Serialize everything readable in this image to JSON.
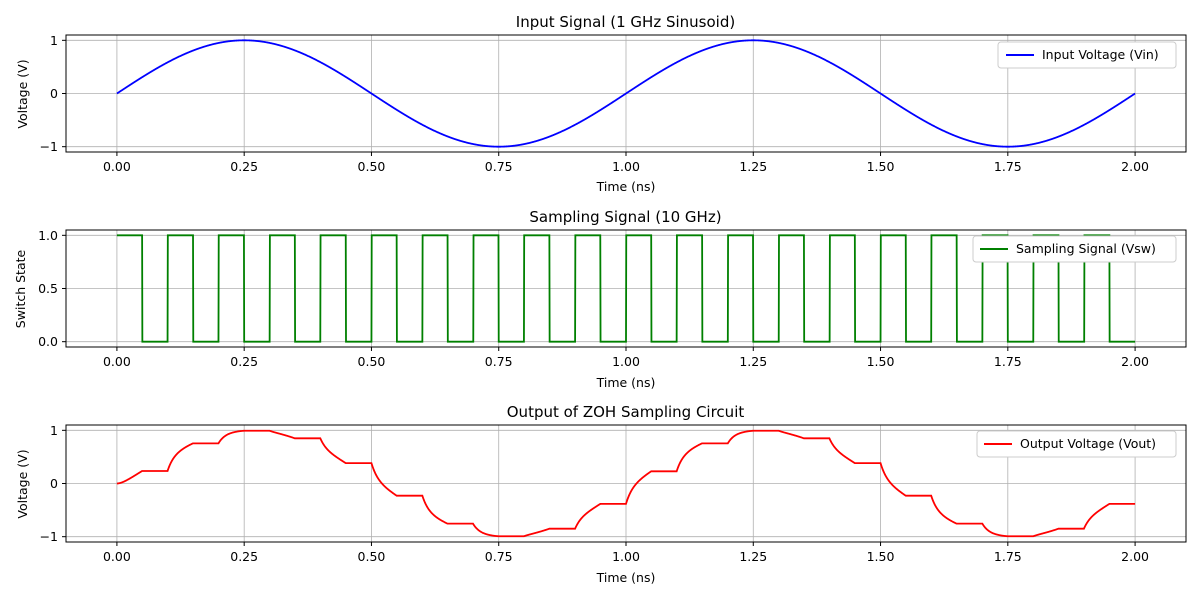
{
  "chart_data": [
    {
      "type": "line",
      "title": "Input Signal (1 GHz Sinusoid)",
      "xlabel": "Time (ns)",
      "ylabel": "Voltage (V)",
      "xlim": [
        -0.1,
        2.1
      ],
      "ylim": [
        -1.1,
        1.1
      ],
      "xticks": [
        "0.00",
        "0.25",
        "0.50",
        "0.75",
        "1.00",
        "1.25",
        "1.50",
        "1.75",
        "2.00"
      ],
      "yticks": [
        "−1",
        "0",
        "1"
      ],
      "ytick_values": [
        -1,
        0,
        1
      ],
      "grid": true,
      "legend": "upper-right",
      "series": [
        {
          "name": "Input Voltage (Vin)",
          "color": "#0000ff",
          "function": "sin(2*pi*1*t)",
          "t_range": [
            0,
            2
          ],
          "x": [
            0,
            0.25,
            0.5,
            0.75,
            1.0,
            1.25,
            1.5,
            1.75,
            2.0
          ],
          "values": [
            0,
            1,
            0,
            -1,
            0,
            1,
            0,
            -1,
            0
          ]
        }
      ]
    },
    {
      "type": "line",
      "title": "Sampling Signal (10 GHz)",
      "xlabel": "Time (ns)",
      "ylabel": "Switch State",
      "xlim": [
        -0.1,
        2.1
      ],
      "ylim": [
        -0.05,
        1.05
      ],
      "xticks": [
        "0.00",
        "0.25",
        "0.50",
        "0.75",
        "1.00",
        "1.25",
        "1.50",
        "1.75",
        "2.00"
      ],
      "yticks": [
        "0.0",
        "0.5",
        "1.0"
      ],
      "ytick_values": [
        0,
        0.5,
        1
      ],
      "grid": true,
      "legend": "upper-right",
      "series": [
        {
          "name": "Sampling Signal (Vsw)",
          "color": "#008000",
          "period_ns": 0.1,
          "duty": 0.5,
          "description_values": "1 for first half of each 0.1 ns period, 0 otherwise",
          "t_range": [
            0,
            2
          ]
        }
      ]
    },
    {
      "type": "line",
      "title": "Output of ZOH Sampling Circuit",
      "xlabel": "Time (ns)",
      "ylabel": "Voltage (V)",
      "xlim": [
        -0.1,
        2.1
      ],
      "ylim": [
        -1.1,
        1.1
      ],
      "xticks": [
        "0.00",
        "0.25",
        "0.50",
        "0.75",
        "1.00",
        "1.25",
        "1.50",
        "1.75",
        "2.00"
      ],
      "yticks": [
        "−1",
        "0",
        "1"
      ],
      "ytick_values": [
        -1,
        0,
        1
      ],
      "grid": true,
      "legend": "upper-right",
      "series": [
        {
          "name": "Output Voltage (Vout)",
          "color": "#ff0000",
          "behavior": "tracks Vin (with RC lag) while switch closed, holds while open",
          "hold_levels": [
            0.25,
            0.77,
            1.0,
            0.84,
            0.37,
            -0.25,
            -0.77,
            -0.99,
            -0.84,
            -0.37,
            0.25,
            0.77,
            1.0,
            0.84,
            0.37,
            -0.25,
            -0.77,
            -0.99,
            -0.84,
            -0.37
          ],
          "t_range": [
            0,
            2
          ]
        }
      ]
    }
  ]
}
